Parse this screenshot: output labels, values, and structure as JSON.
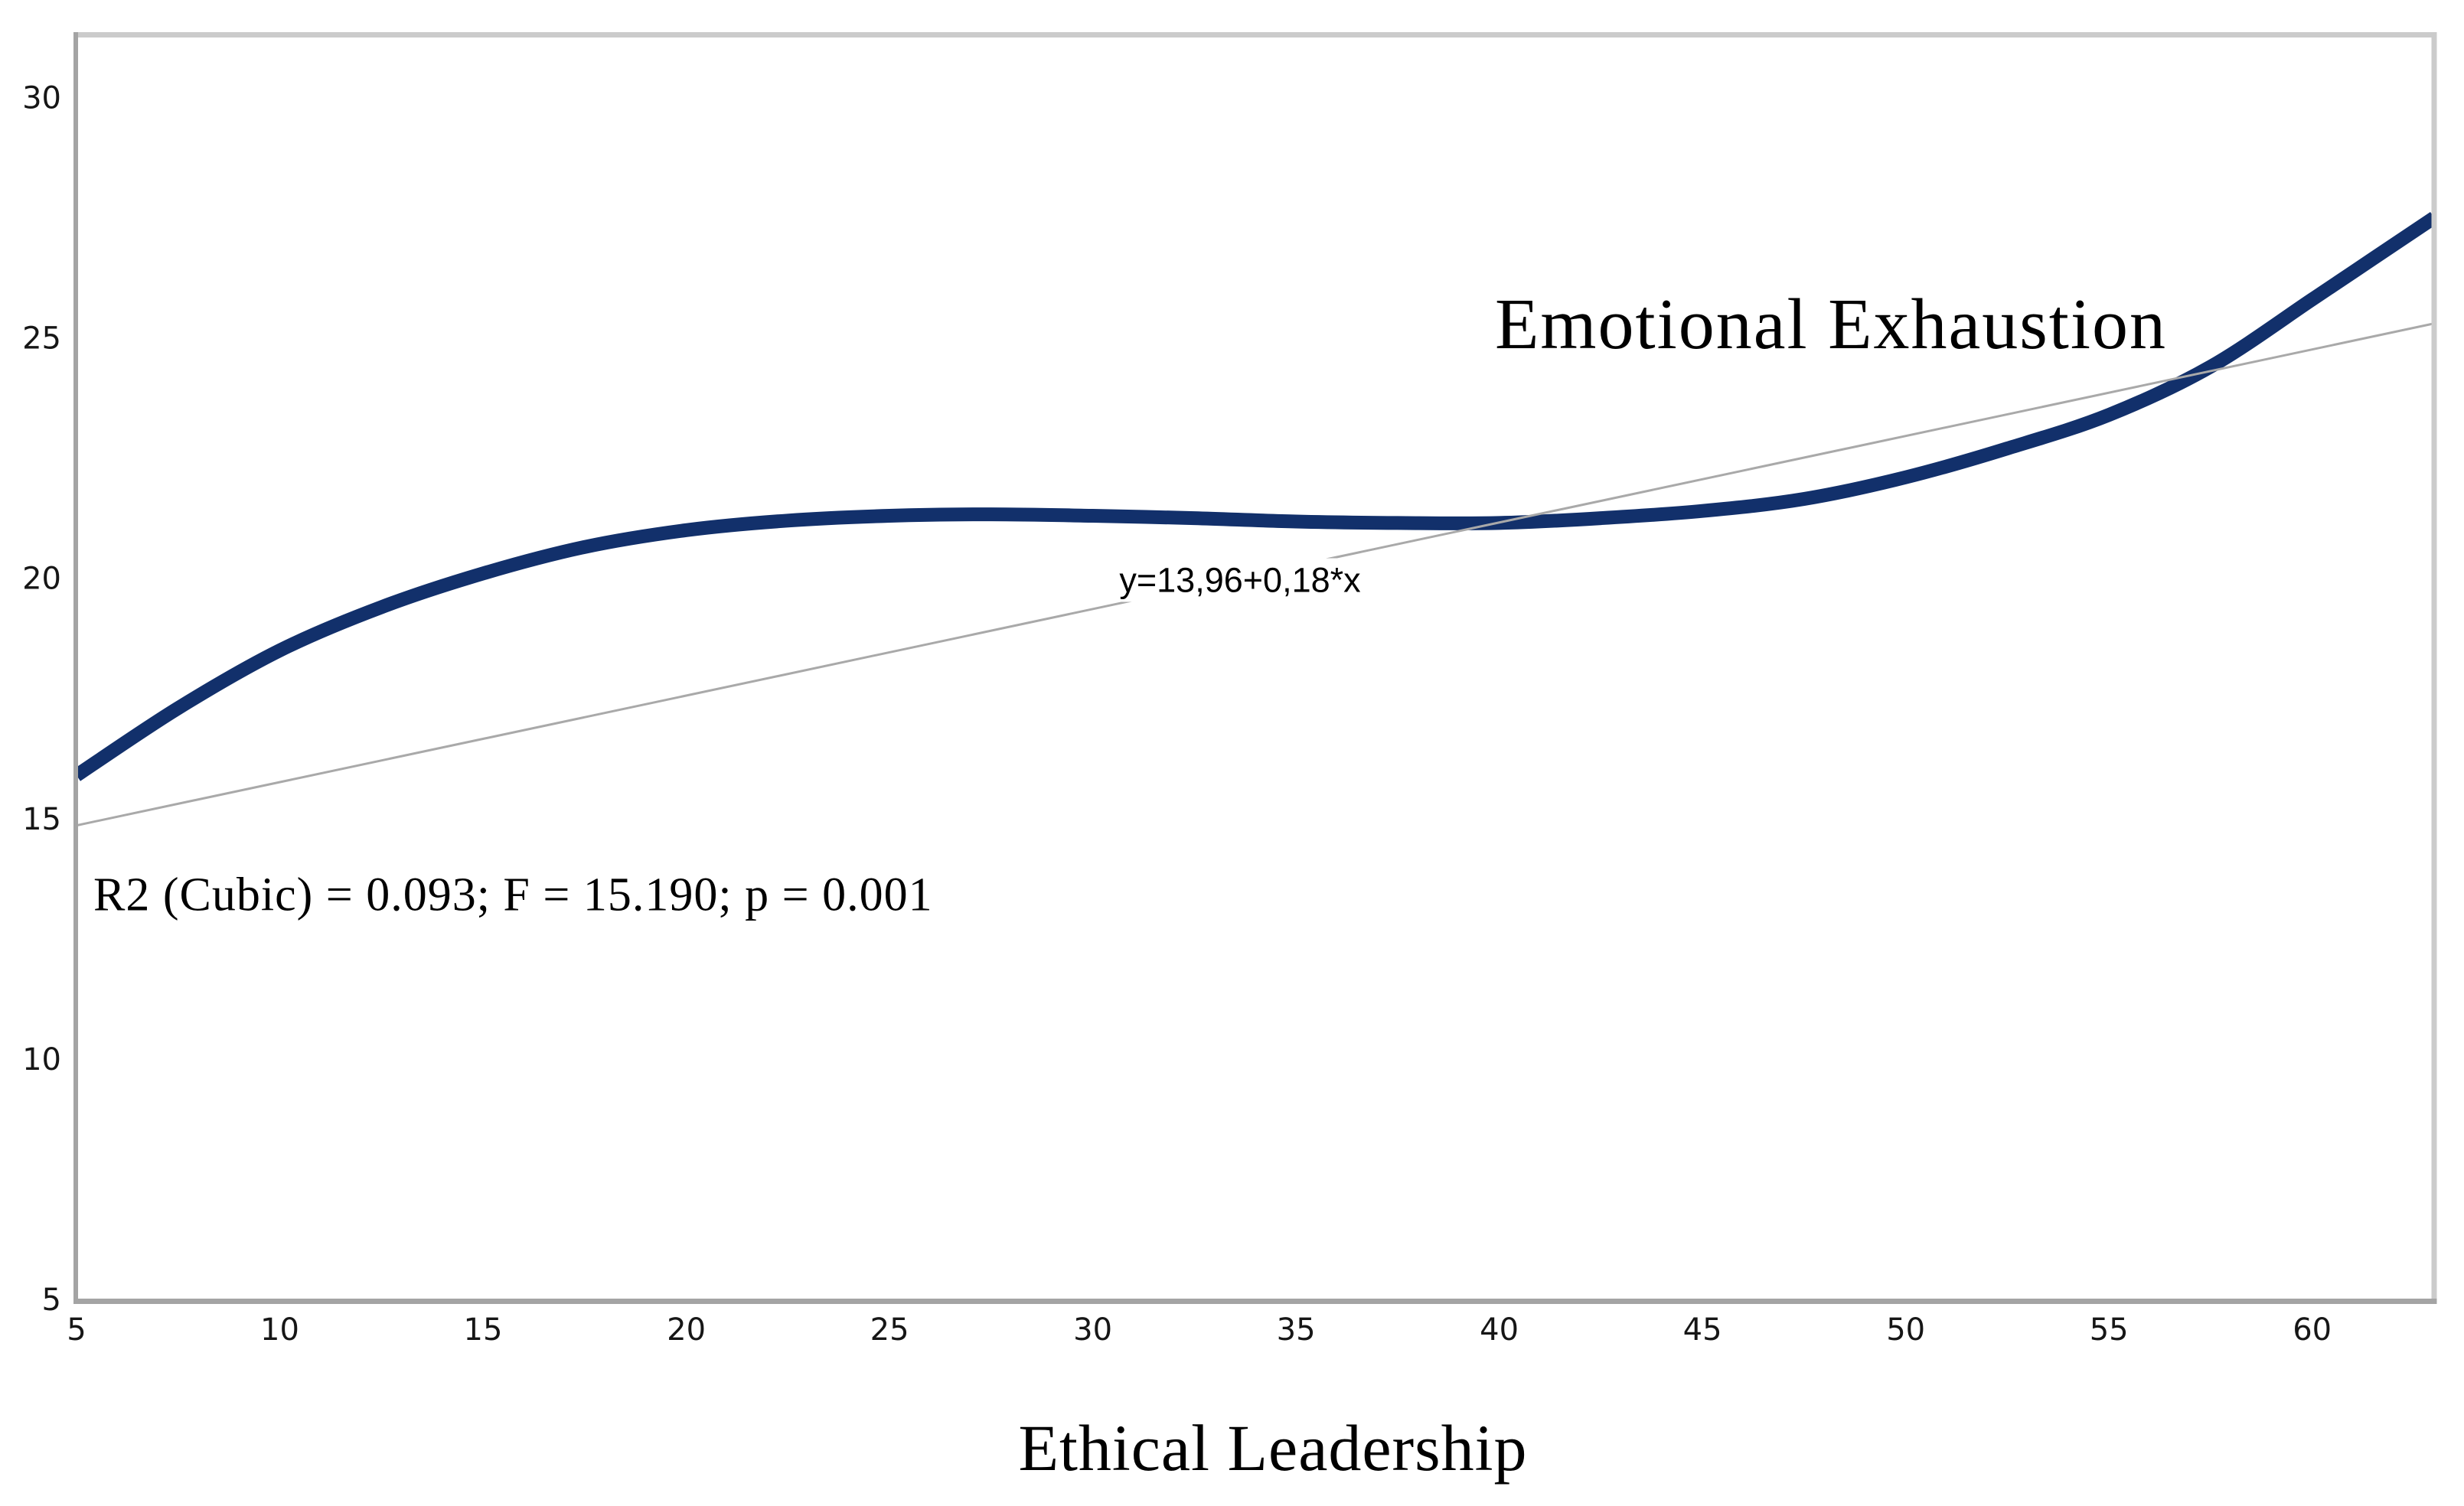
{
  "chart_data": {
    "type": "line",
    "title": "",
    "xlabel": "Ethical Leadership",
    "ylabel": "",
    "x_range": [
      5,
      63
    ],
    "y_range": [
      5,
      31.36
    ],
    "x_ticks": [
      "5",
      "10",
      "15",
      "20",
      "25",
      "30",
      "35",
      "40",
      "45",
      "50",
      "55",
      "60"
    ],
    "y_ticks": [
      "5",
      "10",
      "15",
      "20",
      "25",
      "30"
    ],
    "grid": false,
    "legend_position": "none",
    "series": [
      {
        "name": "cubic_fit",
        "label": "Emotional Exhaustion",
        "line_type": "smooth",
        "color": "#12306b",
        "stroke_width": 18,
        "x": [
          5,
          7.5,
          10,
          12.5,
          15,
          17.5,
          20,
          22.5,
          25,
          27.5,
          30,
          32.5,
          35,
          37.5,
          40,
          42.5,
          45,
          47.5,
          50,
          52.5,
          55,
          57.5,
          60,
          61.5,
          63
        ],
        "y": [
          15.9,
          17.3,
          18.5,
          19.4,
          20.1,
          20.65,
          21.0,
          21.2,
          21.3,
          21.33,
          21.3,
          21.25,
          21.18,
          21.15,
          21.15,
          21.25,
          21.4,
          21.65,
          22.1,
          22.7,
          23.4,
          24.4,
          25.8,
          26.65,
          27.5
        ]
      },
      {
        "name": "linear_fit",
        "label": "y=13,96+0,18*x",
        "line_type": "straight",
        "color": "#a9a9a9",
        "stroke_width": 3,
        "x": [
          5,
          63
        ],
        "y": [
          14.86,
          25.3
        ]
      }
    ],
    "annotations": {
      "series_label": "Emotional Exhaustion",
      "equation": "y=13,96+0,18*x",
      "stats": "R2 (Cubic) = 0.093; F = 15.190; p = 0.001"
    },
    "fit_stats": {
      "r_squared": 0.093,
      "f_value": 15.19,
      "p_value": 0.001,
      "model": "Cubic"
    }
  },
  "colors": {
    "background": "#ffffff",
    "axis_light": "#cbcbcb",
    "axis_dark": "#a4a4a4",
    "tick_text": "#161616",
    "curve": "#12306b",
    "reference_line": "#a9a9a9"
  }
}
